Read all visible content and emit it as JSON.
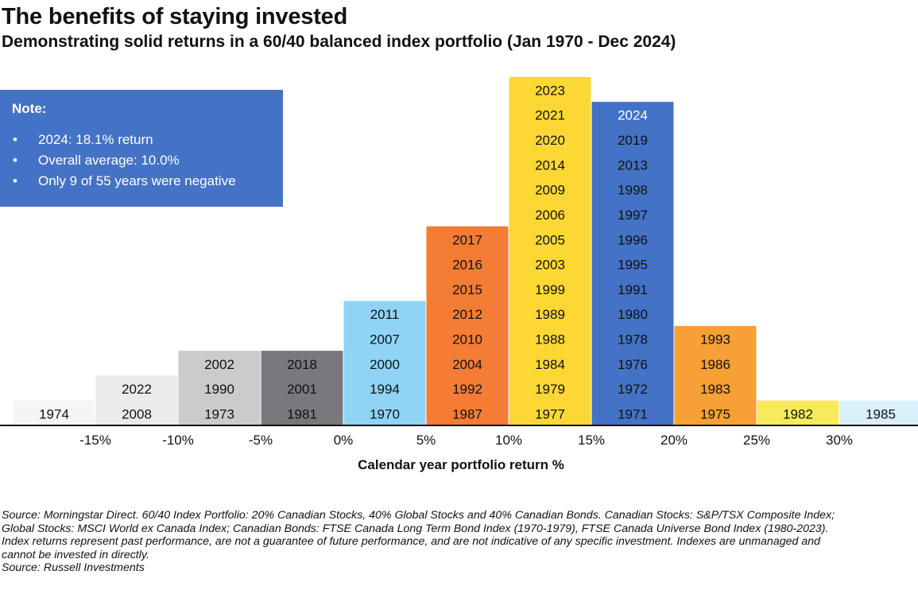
{
  "chart_data": {
    "type": "histogram",
    "title": "The benefits of staying invested",
    "subtitle": "Demonstrating solid returns in a 60/40 balanced index portfolio (Jan 1970 - Dec 2024)",
    "xlabel": "Calendar year portfolio return %",
    "x_ticks": [
      "-15%",
      "-10%",
      "-5%",
      "0%",
      "5%",
      "10%",
      "15%",
      "20%",
      "25%",
      "30%"
    ],
    "x_tick_values": [
      -15,
      -10,
      -5,
      0,
      5,
      10,
      15,
      20,
      25,
      30
    ],
    "bins": [
      {
        "range": [
          -20,
          -15
        ],
        "count": 1,
        "years": [
          "1974"
        ],
        "color": "#f5f5f5",
        "text_color": "#111111"
      },
      {
        "range": [
          -15,
          -10
        ],
        "count": 2,
        "years": [
          "2008",
          "2022"
        ],
        "color": "#ebebeb",
        "text_color": "#111111"
      },
      {
        "range": [
          -10,
          -5
        ],
        "count": 3,
        "years": [
          "1973",
          "1990",
          "2002"
        ],
        "color": "#cccbcb",
        "text_color": "#111111"
      },
      {
        "range": [
          -5,
          0
        ],
        "count": 3,
        "years": [
          "1981",
          "2001",
          "2018"
        ],
        "color": "#7a787c",
        "text_color": "#111111"
      },
      {
        "range": [
          0,
          5
        ],
        "count": 5,
        "years": [
          "1970",
          "1994",
          "2000",
          "2007",
          "2011"
        ],
        "color": "#8fd4f4",
        "text_color": "#111111"
      },
      {
        "range": [
          5,
          10
        ],
        "count": 8,
        "years": [
          "1987",
          "1992",
          "2004",
          "2010",
          "2012",
          "2015",
          "2016",
          "2017"
        ],
        "color": "#f47c35",
        "text_color": "#111111"
      },
      {
        "range": [
          10,
          15
        ],
        "count": 14,
        "years": [
          "1977",
          "1979",
          "1984",
          "1988",
          "1989",
          "1999",
          "2003",
          "2005",
          "2006",
          "2009",
          "2014",
          "2020",
          "2021",
          "2023"
        ],
        "color": "#fdd835",
        "text_color": "#111111"
      },
      {
        "range": [
          15,
          20
        ],
        "count": 13,
        "years": [
          "1971",
          "1972",
          "1976",
          "1978",
          "1980",
          "1991",
          "1995",
          "1996",
          "1997",
          "1998",
          "2013",
          "2019",
          "2024"
        ],
        "color": "#4472c4",
        "text_color": "#111111",
        "highlight_years": {
          "2024": "#ffffff"
        }
      },
      {
        "range": [
          20,
          25
        ],
        "count": 4,
        "years": [
          "1975",
          "1983",
          "1986",
          "1993"
        ],
        "color": "#f6a035",
        "text_color": "#111111"
      },
      {
        "range": [
          25,
          30
        ],
        "count": 1,
        "years": [
          "1982"
        ],
        "color": "#f8ea5a",
        "text_color": "#111111"
      },
      {
        "range": [
          30,
          35
        ],
        "count": 1,
        "years": [
          "1985"
        ],
        "color": "#d9f0fb",
        "text_color": "#111111"
      }
    ]
  },
  "note": {
    "title": "Note:",
    "items": [
      "2024: 18.1% return",
      "Overall average: 10.0%",
      "Only 9 of 55 years were negative"
    ]
  },
  "footnote": {
    "lines": [
      "Source: Morningstar Direct. 60/40 Index Portfolio: 20% Canadian Stocks, 40% Global Stocks and 40% Canadian Bonds. Canadian Stocks: S&P/TSX Composite Index;",
      "Global Stocks: MSCI World ex Canada Index; Canadian Bonds: FTSE Canada Long Term Bond Index (1970-1979), FTSE Canada Universe Bond Index (1980-2023).",
      "Index returns represent past performance, are not a guarantee of future performance, and are not indicative of any specific investment. Indexes are unmanaged and",
      "cannot be invested in directly.",
      "Source: Russell Investments"
    ]
  }
}
